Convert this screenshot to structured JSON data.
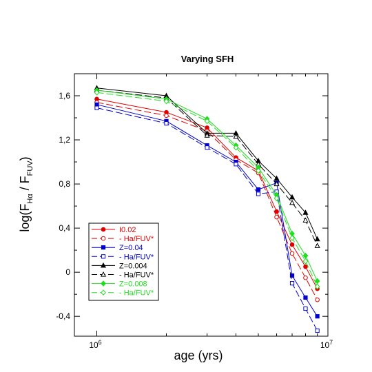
{
  "chart_data": {
    "type": "line",
    "title": "Varying SFH",
    "xlabel": "age (yrs)",
    "ylabel": {
      "main": "log(F",
      "sub1": "Hα",
      "mid": " / F",
      "sub2": "FUV",
      "end": ")"
    },
    "x_scale": "log",
    "xlim": [
      800000,
      10000000
    ],
    "ylim": [
      -0.58,
      1.8
    ],
    "x_ticks": [
      {
        "value": 1000000,
        "base": "10",
        "exp": "6"
      },
      {
        "value": 10000000,
        "base": "10",
        "exp": "7"
      }
    ],
    "y_ticks": [
      {
        "value": 1.6,
        "label": "1,6"
      },
      {
        "value": 1.2,
        "label": "1,2"
      },
      {
        "value": 0.8,
        "label": "0,8"
      },
      {
        "value": 0.4,
        "label": "0,4"
      },
      {
        "value": 0.0,
        "label": "0"
      },
      {
        "value": -0.4,
        "label": "-0,4"
      }
    ],
    "grid": false,
    "legend_position": "bottom-left",
    "series": [
      {
        "name": "I0.02",
        "color": "#e00000",
        "dashed": false,
        "marker": "circle",
        "filled": true,
        "x": [
          1000000,
          2000000,
          3000000,
          4000000,
          5000000,
          6000000,
          7000000,
          8000000,
          9000000
        ],
        "y": [
          1.57,
          1.45,
          1.31,
          1.04,
          0.92,
          0.55,
          0.25,
          0.05,
          -0.15
        ]
      },
      {
        "name": "- Ha/FUV*",
        "color": "#e00000",
        "dashed": true,
        "marker": "circle",
        "filled": false,
        "x": [
          1000000,
          2000000,
          3000000,
          4000000,
          5000000,
          6000000,
          7000000,
          8000000,
          9000000
        ],
        "y": [
          1.54,
          1.42,
          1.28,
          1.02,
          0.9,
          0.5,
          0.17,
          -0.05,
          -0.25
        ]
      },
      {
        "name": "Z=0.04",
        "color": "#0000d0",
        "dashed": false,
        "marker": "square",
        "filled": true,
        "x": [
          1000000,
          2000000,
          3000000,
          4000000,
          5000000,
          6000000,
          7000000,
          8000000,
          9000000
        ],
        "y": [
          1.52,
          1.37,
          1.15,
          1.0,
          0.75,
          0.81,
          -0.03,
          -0.23,
          -0.4
        ]
      },
      {
        "name": "- Ha/FUV*",
        "color": "#0000d0",
        "dashed": true,
        "marker": "square",
        "filled": false,
        "x": [
          1000000,
          2000000,
          3000000,
          4000000,
          5000000,
          6000000,
          7000000,
          8000000,
          9000000
        ],
        "y": [
          1.49,
          1.35,
          1.13,
          0.98,
          0.71,
          0.73,
          -0.1,
          -0.33,
          -0.53
        ]
      },
      {
        "name": "Z=0.004",
        "color": "#000000",
        "dashed": false,
        "marker": "triangle",
        "filled": true,
        "x": [
          1000000,
          2000000,
          3000000,
          4000000,
          5000000,
          6000000,
          7000000,
          8000000,
          9000000
        ],
        "y": [
          1.67,
          1.6,
          1.26,
          1.26,
          1.01,
          0.85,
          0.68,
          0.54,
          0.3
        ]
      },
      {
        "name": "- Ha/FUV*",
        "color": "#000000",
        "dashed": true,
        "marker": "triangle",
        "filled": false,
        "x": [
          1000000,
          2000000,
          3000000,
          4000000,
          5000000,
          6000000,
          7000000,
          8000000,
          9000000
        ],
        "y": [
          1.65,
          1.58,
          1.24,
          1.23,
          0.98,
          0.8,
          0.63,
          0.47,
          0.24
        ]
      },
      {
        "name": "Z=0.008",
        "color": "#22dd22",
        "dashed": false,
        "marker": "diamond",
        "filled": true,
        "x": [
          1000000,
          2000000,
          3000000,
          4000000,
          5000000,
          6000000,
          7000000,
          8000000,
          9000000
        ],
        "y": [
          1.65,
          1.57,
          1.39,
          1.15,
          0.95,
          0.7,
          0.35,
          0.15,
          -0.08
        ]
      },
      {
        "name": "- Ha/FUV*",
        "color": "#22dd22",
        "dashed": true,
        "marker": "diamond",
        "filled": false,
        "x": [
          1000000,
          2000000,
          3000000,
          4000000,
          5000000,
          6000000,
          7000000,
          8000000,
          9000000
        ],
        "y": [
          1.63,
          1.55,
          1.37,
          1.13,
          0.92,
          0.67,
          0.31,
          0.1,
          -0.13
        ]
      }
    ]
  }
}
